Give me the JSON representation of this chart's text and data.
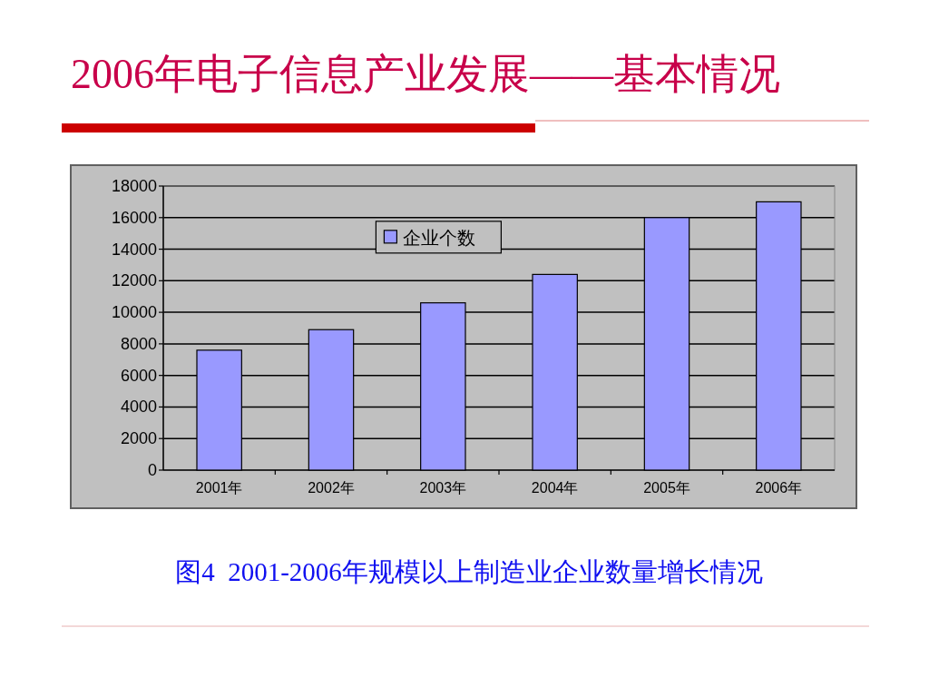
{
  "chart_data": {
    "type": "bar",
    "title": "2006年电子信息产业发展——基本情况",
    "categories": [
      "2001年",
      "2002年",
      "2003年",
      "2004年",
      "2005年",
      "2006年"
    ],
    "series": [
      {
        "name": "企业个数",
        "color": "#9999ff",
        "values": [
          7600,
          8900,
          10600,
          12400,
          16000,
          17000
        ]
      }
    ],
    "ylim": [
      0,
      18000
    ],
    "yticks": [
      0,
      2000,
      4000,
      6000,
      8000,
      10000,
      12000,
      14000,
      16000,
      18000
    ],
    "grid": "y",
    "legend": "top",
    "annotations": [
      "图4  2001-2006年规模以上制造业企业数量增长情况"
    ]
  }
}
